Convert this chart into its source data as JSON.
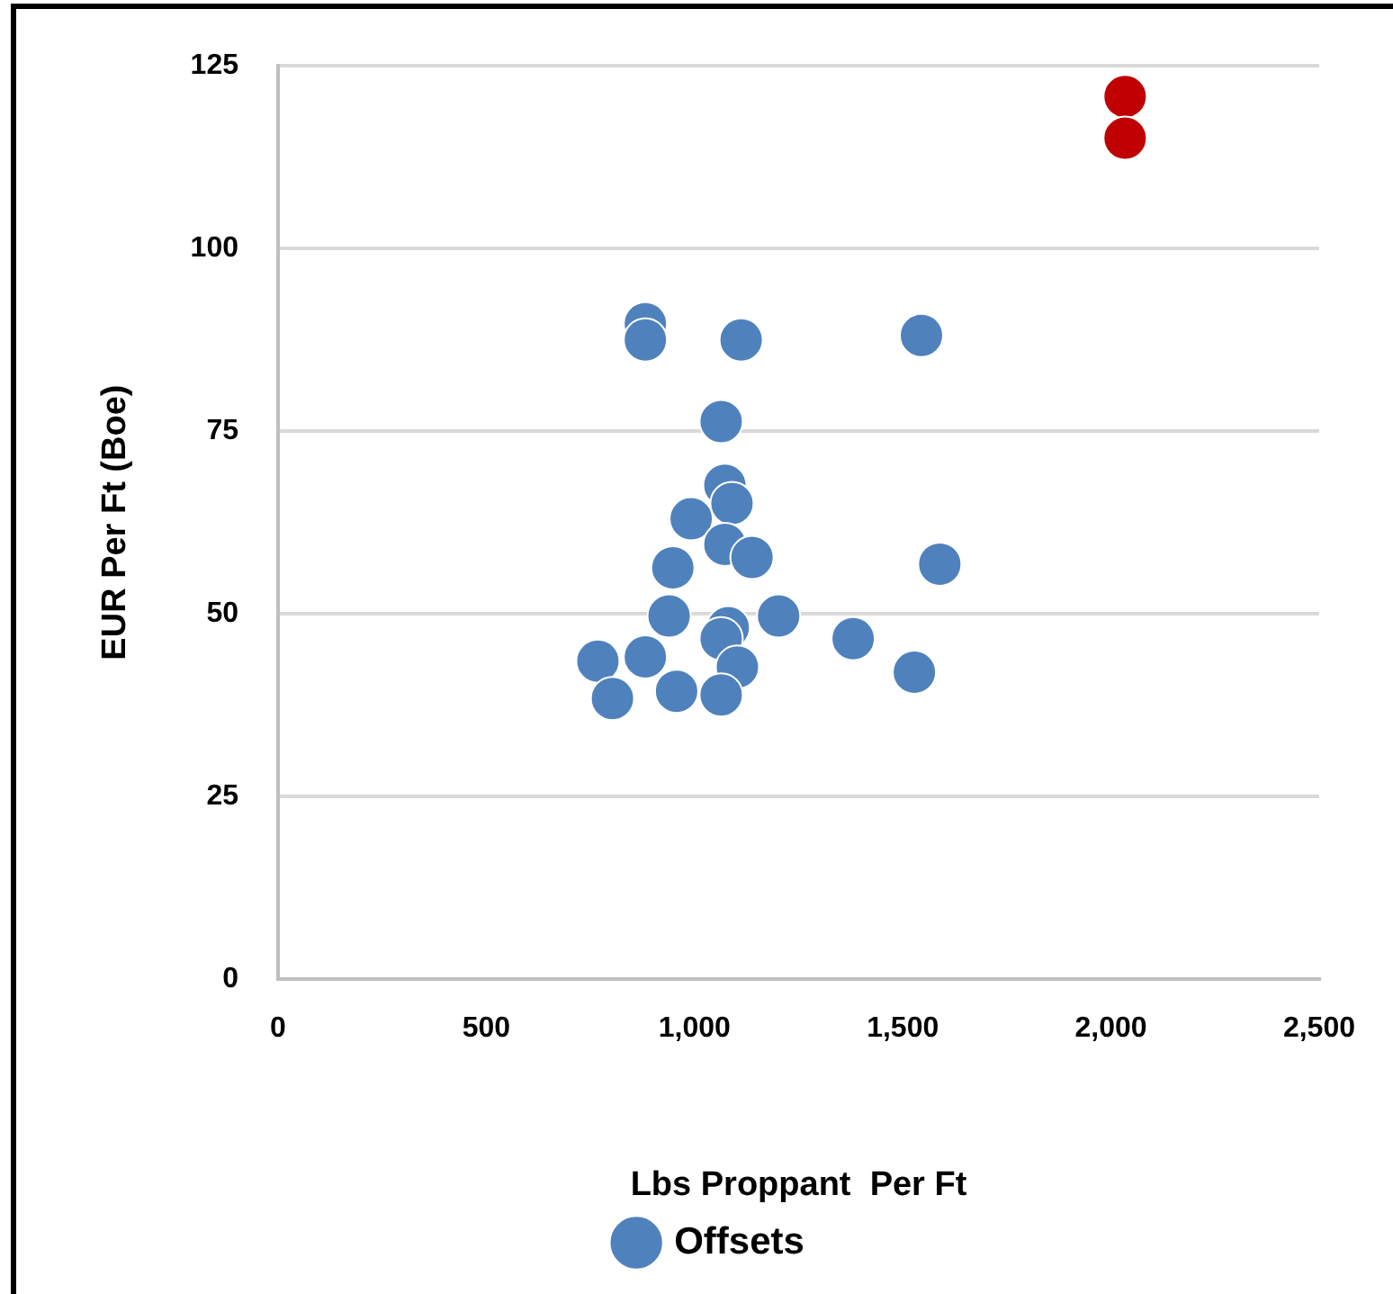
{
  "chart_data": {
    "type": "scatter",
    "xlabel": "Lbs Proppant  Per Ft",
    "ylabel": "EUR Per Ft (Boe)",
    "xlim": [
      0,
      2500
    ],
    "xticks": [
      0,
      500,
      {
        "value": 1000,
        "label": "1,000"
      },
      {
        "value": 1500,
        "label": "1,500"
      },
      {
        "value": 2000,
        "label": "2,000"
      },
      {
        "value": 2500,
        "label": "2,500"
      }
    ],
    "ylim": [
      0,
      125
    ],
    "yticks": [
      0,
      25,
      50,
      75,
      100,
      125
    ],
    "grid": "y",
    "legend": "bottom",
    "marker": "circle",
    "series": [
      {
        "color": "#c00000",
        "x": [
          2034,
          2034
        ],
        "values": [
          120.8,
          115.1
        ]
      },
      {
        "name": "Offsets",
        "color": "#4f81bd",
        "x": [
          882,
          882,
          1112,
          1545,
          1064,
          1073,
          1090,
          992,
          1073,
          1138,
          1589,
          948,
          939,
          1202,
          1081,
          1064,
          1381,
          768,
          882,
          1103,
          1528,
          803,
          957,
          1064
        ],
        "values": [
          89.7,
          87.5,
          87.5,
          88.1,
          76.3,
          67.6,
          65.1,
          63.0,
          59.5,
          57.7,
          56.8,
          56.3,
          49.7,
          49.7,
          48.1,
          46.6,
          46.6,
          43.5,
          44.1,
          42.7,
          42.0,
          38.4,
          39.4,
          38.9
        ]
      }
    ]
  }
}
